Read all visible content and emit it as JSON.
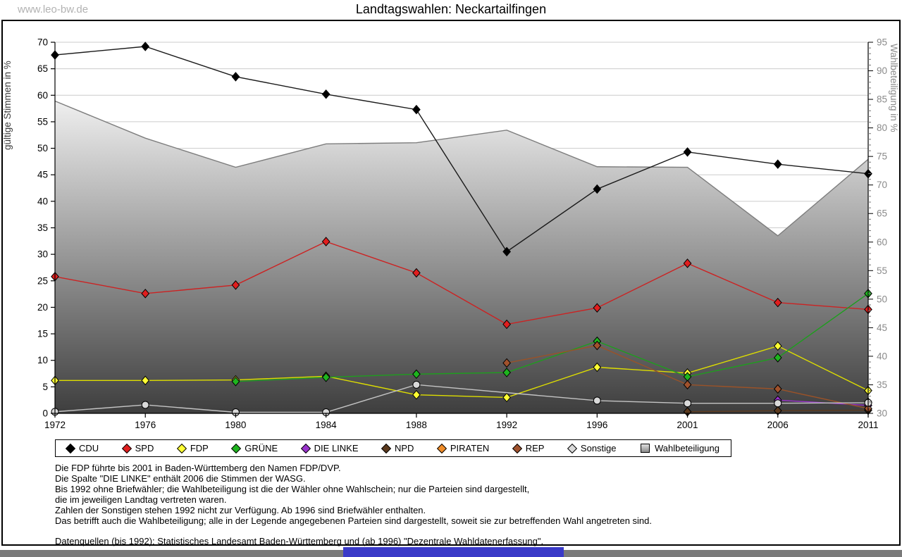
{
  "watermark": "www.leo-bw.de",
  "title": "Landtagswahlen: Neckartailfingen",
  "chart_data": {
    "type": "line",
    "title": "Landtagswahlen: Neckartailfingen",
    "categories": [
      "1972",
      "1976",
      "1980",
      "1984",
      "1988",
      "1992",
      "1996",
      "2001",
      "2006",
      "2011"
    ],
    "left_axis": {
      "label": "gültige Stimmen in %",
      "min": 0,
      "max": 70,
      "step": 5
    },
    "right_axis": {
      "label": "Wahlbeteiligung in %",
      "min": 30,
      "max": 95,
      "step": 5,
      "minor_step": 1
    },
    "grid": true,
    "legend_position": "bottom",
    "series": [
      {
        "name": "CDU",
        "color": "#000000",
        "line": "#1a1a1a",
        "marker": "diamond",
        "values": [
          67.6,
          69.2,
          63.5,
          60.2,
          57.3,
          30.5,
          42.3,
          49.3,
          47.0,
          45.2
        ]
      },
      {
        "name": "SPD",
        "color": "#e01e1e",
        "line": "#cc2222",
        "marker": "diamond",
        "values": [
          25.8,
          22.6,
          24.2,
          32.4,
          26.5,
          16.8,
          19.9,
          28.3,
          20.9,
          19.6
        ]
      },
      {
        "name": "FDP",
        "color": "#ffff33",
        "line": "#dede00",
        "marker": "diamond",
        "values": [
          6.2,
          6.2,
          6.3,
          7.0,
          3.5,
          3.0,
          8.7,
          7.6,
          12.7,
          4.3
        ]
      },
      {
        "name": "GRÜNE",
        "color": "#1eb41e",
        "line": "#1e9e1e",
        "marker": "diamond",
        "values": [
          null,
          null,
          6.0,
          6.8,
          7.4,
          7.7,
          13.6,
          6.9,
          10.5,
          22.6
        ]
      },
      {
        "name": "DIE LINKE",
        "color": "#9933cc",
        "line": "#9933cc",
        "marker": "diamond",
        "values": [
          null,
          null,
          null,
          null,
          null,
          null,
          null,
          null,
          2.5,
          1.5
        ]
      },
      {
        "name": "NPD",
        "color": "#5c3a1e",
        "line": "#5c3a1e",
        "marker": "diamond",
        "values": [
          null,
          null,
          null,
          null,
          null,
          null,
          null,
          0.3,
          0.5,
          0.6
        ]
      },
      {
        "name": "PIRATEN",
        "color": "#f08c28",
        "line": "#e07820",
        "marker": "diamond",
        "values": [
          null,
          null,
          null,
          null,
          null,
          null,
          null,
          null,
          null,
          2.1
        ]
      },
      {
        "name": "REP",
        "color": "#a0522d",
        "line": "#9a5228",
        "marker": "diamond",
        "values": [
          null,
          null,
          null,
          null,
          null,
          9.5,
          12.8,
          5.4,
          4.6,
          0.9
        ]
      },
      {
        "name": "Sonstige",
        "color": "#d9d9d9",
        "line": "#c4c4c4",
        "marker": "circle",
        "values": [
          0.3,
          1.6,
          0.2,
          0.2,
          5.4,
          null,
          2.4,
          1.9,
          1.9,
          2.0
        ]
      }
    ],
    "turnout": {
      "name": "Wahlbeteiligung",
      "axis": "right",
      "style": "area",
      "outline_color": "#7d7d7d",
      "values": [
        84.7,
        78.2,
        73.1,
        77.2,
        77.4,
        79.6,
        73.2,
        73.1,
        61.1,
        74.5
      ]
    }
  },
  "legend": {
    "items": [
      {
        "label": "CDU",
        "color": "#000000",
        "marker": "diamond"
      },
      {
        "label": "SPD",
        "color": "#e01e1e",
        "marker": "diamond"
      },
      {
        "label": "FDP",
        "color": "#ffff33",
        "marker": "diamond"
      },
      {
        "label": "GRÜNE",
        "color": "#1eb41e",
        "marker": "diamond"
      },
      {
        "label": "DIE LINKE",
        "color": "#9933cc",
        "marker": "diamond"
      },
      {
        "label": "NPD",
        "color": "#5c3a1e",
        "marker": "diamond"
      },
      {
        "label": "PIRATEN",
        "color": "#f08c28",
        "marker": "diamond"
      },
      {
        "label": "REP",
        "color": "#a0522d",
        "marker": "diamond"
      },
      {
        "label": "Sonstige",
        "color": "#d9d9d9",
        "marker": "diamond"
      },
      {
        "label": "Wahlbeteiligung",
        "color": "#b8b8b8",
        "marker": "square"
      }
    ]
  },
  "footnotes": {
    "lines": [
      "Die FDP führte bis 2001 in Baden-Württemberg den Namen FDP/DVP.",
      "Die Spalte \"DIE LINKE\" enthält 2006 die Stimmen der WASG.",
      "Bis 1992 ohne Briefwähler; die Wahlbeteiligung ist die der Wähler ohne Wahlschein; nur die Parteien sind dargestellt,",
      "die im jeweiligen Landtag vertreten waren.",
      "Zahlen der Sonstigen stehen 1992 nicht zur Verfügung. Ab 1996 sind Briefwähler enthalten.",
      "Das betrifft auch die Wahlbeteiligung; alle in der Legende angegebenen Parteien sind dargestellt, soweit sie zur betreffenden Wahl angetreten sind."
    ],
    "source": "Datenquellen (bis 1992): Statistisches Landesamt Baden-Württemberg und (ab 1996) \"Dezentrale Wahldatenerfassung\"."
  },
  "scrollbar": {
    "track_color": "#7a7a7a",
    "thumb_color": "#3a3ac8"
  }
}
